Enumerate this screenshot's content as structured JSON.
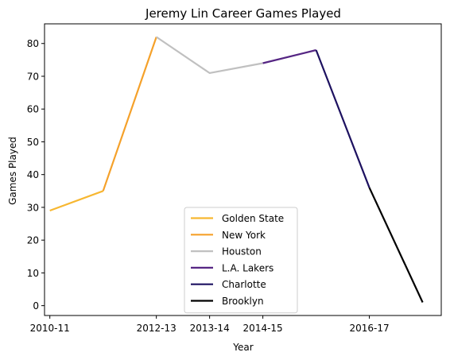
{
  "chart_data": {
    "type": "line",
    "title": "Jeremy Lin Career Games Played",
    "xlabel": "Year",
    "ylabel": "Games Played",
    "x_tick_labels": [
      "2010-11",
      "2012-13",
      "2013-14",
      "2014-15",
      "2016-17"
    ],
    "x_tick_indices": [
      0,
      2,
      3,
      4,
      6
    ],
    "y_ticks": [
      0,
      10,
      20,
      30,
      40,
      50,
      60,
      70,
      80
    ],
    "ylim": [
      -3,
      86
    ],
    "xlim_index": [
      -0.1,
      7.35
    ],
    "grid": false,
    "legend_position": "lower center",
    "points": [
      {
        "index": 0,
        "value": 29
      },
      {
        "index": 1,
        "value": 35
      },
      {
        "index": 2,
        "value": 82
      },
      {
        "index": 3,
        "value": 71
      },
      {
        "index": 4,
        "value": 74
      },
      {
        "index": 5,
        "value": 78
      },
      {
        "index": 6,
        "value": 36
      },
      {
        "index": 7,
        "value": 1
      }
    ],
    "series": [
      {
        "name": "Golden State",
        "color": "#f7b731",
        "from_index": 0,
        "to_index": 1
      },
      {
        "name": "New York",
        "color": "#f5a12a",
        "from_index": 1,
        "to_index": 2
      },
      {
        "name": "Houston",
        "color": "#c0c0c0",
        "from_index": 2,
        "to_index": 4
      },
      {
        "name": "L.A. Lakers",
        "color": "#552583",
        "from_index": 4,
        "to_index": 5
      },
      {
        "name": "Charlotte",
        "color": "#1d1160",
        "from_index": 5,
        "to_index": 6
      },
      {
        "name": "Brooklyn",
        "color": "#000000",
        "from_index": 6,
        "to_index": 7
      }
    ]
  }
}
